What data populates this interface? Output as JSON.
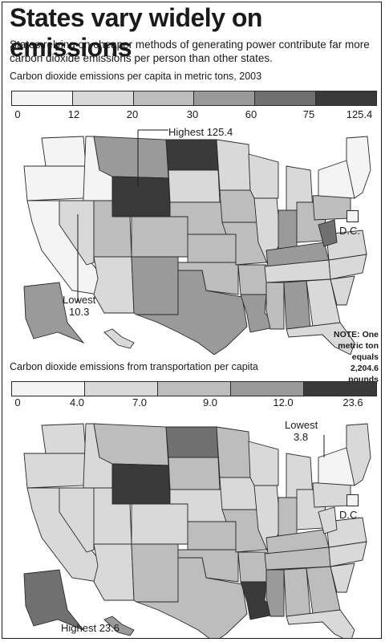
{
  "headline": "States vary widely on emissions",
  "subhead": "States relying on cheaper methods of generating power contribute far more carbon dioxide emissions per person than other states.",
  "note_text": "NOTE: One metric ton equals 2,204.6 pounds",
  "dc_label": "D.C.",
  "colors": {
    "scale": [
      "#f4f4f4",
      "#d9d9d9",
      "#bdbdbd",
      "#9a9a9a",
      "#707070",
      "#3a3a3a"
    ],
    "border": "#ffffff",
    "outline": "#2a2a2a"
  },
  "maps": [
    {
      "title": "Carbon dioxide emissions per capita in metric tons, 2003",
      "legend_ticks": [
        "0",
        "12",
        "20",
        "30",
        "60",
        "75",
        "125.4"
      ],
      "highest_label": "Highest 125.4",
      "lowest_label": "Lowest",
      "lowest_value": "10.3",
      "fills": {
        "WA": 0,
        "OR": 0,
        "CA": 0,
        "ID": 0,
        "NV": 1,
        "MT": 3,
        "WY": 5,
        "UT": 2,
        "AZ": 1,
        "CO": 2,
        "NM": 3,
        "ND": 5,
        "SD": 1,
        "NE": 2,
        "KS": 2,
        "OK": 2,
        "TX": 3,
        "MN": 1,
        "IA": 2,
        "MO": 2,
        "AR": 2,
        "LA": 3,
        "WI": 1,
        "IL": 1,
        "MI": 1,
        "IN": 3,
        "OH": 2,
        "KY": 3,
        "TN": 1,
        "MS": 2,
        "AL": 3,
        "GA": 1,
        "FL": 1,
        "SC": 1,
        "NC": 1,
        "VA": 1,
        "WV": 4,
        "PA": 2,
        "NY": 0,
        "NE_STATES": 0,
        "AK": 3,
        "HI": 1,
        "DC": 0
      }
    },
    {
      "title": "Carbon dioxide emissions from transportation per capita",
      "legend_ticks": [
        "0",
        "4.0",
        "7.0",
        "9.0",
        "12.0",
        "23.6"
      ],
      "highest_label": "Highest 23.6",
      "lowest_label": "Lowest",
      "lowest_value": "3.8",
      "fills": {
        "WA": 1,
        "OR": 1,
        "CA": 1,
        "ID": 1,
        "NV": 1,
        "MT": 2,
        "WY": 5,
        "UT": 1,
        "AZ": 1,
        "CO": 1,
        "NM": 2,
        "ND": 4,
        "SD": 2,
        "NE": 1,
        "KS": 2,
        "OK": 2,
        "TX": 2,
        "MN": 2,
        "IA": 1,
        "MO": 2,
        "AR": 2,
        "LA": 5,
        "WI": 1,
        "IL": 1,
        "MI": 1,
        "IN": 2,
        "OH": 1,
        "KY": 2,
        "TN": 2,
        "MS": 3,
        "AL": 2,
        "GA": 2,
        "FL": 1,
        "SC": 1,
        "NC": 1,
        "VA": 1,
        "WV": 1,
        "PA": 1,
        "NY": 0,
        "NE_STATES": 1,
        "AK": 4,
        "HI": 3,
        "DC": 0
      }
    }
  ]
}
